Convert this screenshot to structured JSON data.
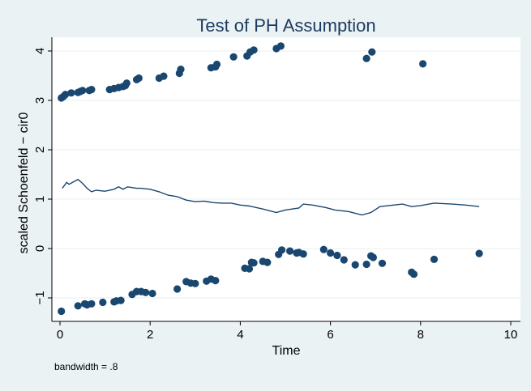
{
  "chart_data": {
    "type": "scatter",
    "title": "Test of PH Assumption",
    "xlabel": "Time",
    "ylabel": "scaled Schoenfeld − cir0",
    "note": "bandwidth = .8",
    "xlim": [
      0,
      10
    ],
    "ylim": [
      -1.4,
      4.3
    ],
    "xticks": [
      0,
      2,
      4,
      6,
      8,
      10
    ],
    "yticks": [
      -1,
      0,
      1,
      2,
      3,
      4
    ],
    "grid": true,
    "colors": {
      "background": "#eaf2f3",
      "plot": "#ffffff",
      "marker": "#1a476f",
      "line": "#1a476f",
      "title": "#1e3a5f",
      "grid": "#eaf2f3"
    },
    "series": [
      {
        "type": "scatter",
        "points": [
          [
            0.03,
            3.05
          ],
          [
            0.08,
            3.08
          ],
          [
            0.12,
            3.12
          ],
          [
            0.25,
            3.15
          ],
          [
            0.4,
            3.16
          ],
          [
            0.45,
            3.18
          ],
          [
            0.5,
            3.2
          ],
          [
            0.65,
            3.2
          ],
          [
            0.7,
            3.22
          ],
          [
            1.1,
            3.22
          ],
          [
            1.2,
            3.24
          ],
          [
            1.3,
            3.26
          ],
          [
            1.4,
            3.28
          ],
          [
            1.45,
            3.3
          ],
          [
            1.48,
            3.35
          ],
          [
            1.7,
            3.42
          ],
          [
            1.75,
            3.45
          ],
          [
            2.2,
            3.45
          ],
          [
            2.3,
            3.49
          ],
          [
            2.65,
            3.55
          ],
          [
            2.68,
            3.63
          ],
          [
            3.35,
            3.66
          ],
          [
            3.45,
            3.68
          ],
          [
            3.48,
            3.73
          ],
          [
            3.85,
            3.88
          ],
          [
            4.15,
            3.9
          ],
          [
            4.22,
            3.98
          ],
          [
            4.3,
            4.02
          ],
          [
            4.8,
            4.05
          ],
          [
            4.9,
            4.1
          ],
          [
            6.8,
            3.85
          ],
          [
            6.92,
            3.98
          ],
          [
            8.05,
            3.74
          ],
          [
            0.03,
            -1.27
          ],
          [
            0.4,
            -1.16
          ],
          [
            0.55,
            -1.12
          ],
          [
            0.6,
            -1.14
          ],
          [
            0.7,
            -1.12
          ],
          [
            0.95,
            -1.09
          ],
          [
            1.2,
            -1.08
          ],
          [
            1.25,
            -1.06
          ],
          [
            1.35,
            -1.05
          ],
          [
            1.6,
            -0.93
          ],
          [
            1.7,
            -0.87
          ],
          [
            1.8,
            -0.87
          ],
          [
            1.9,
            -0.89
          ],
          [
            2.05,
            -0.91
          ],
          [
            2.6,
            -0.82
          ],
          [
            2.8,
            -0.67
          ],
          [
            2.9,
            -0.7
          ],
          [
            3.0,
            -0.71
          ],
          [
            3.25,
            -0.66
          ],
          [
            3.35,
            -0.62
          ],
          [
            3.45,
            -0.65
          ],
          [
            4.1,
            -0.4
          ],
          [
            4.2,
            -0.41
          ],
          [
            4.25,
            -0.28
          ],
          [
            4.3,
            -0.29
          ],
          [
            4.5,
            -0.26
          ],
          [
            4.6,
            -0.28
          ],
          [
            4.85,
            -0.12
          ],
          [
            4.92,
            -0.03
          ],
          [
            5.1,
            -0.05
          ],
          [
            5.25,
            -0.09
          ],
          [
            5.3,
            -0.08
          ],
          [
            5.4,
            -0.11
          ],
          [
            5.85,
            -0.02
          ],
          [
            6.0,
            -0.09
          ],
          [
            6.15,
            -0.14
          ],
          [
            6.3,
            -0.23
          ],
          [
            6.55,
            -0.33
          ],
          [
            6.8,
            -0.32
          ],
          [
            6.9,
            -0.15
          ],
          [
            6.95,
            -0.18
          ],
          [
            7.15,
            -0.3
          ],
          [
            7.8,
            -0.48
          ],
          [
            7.85,
            -0.52
          ],
          [
            8.3,
            -0.22
          ],
          [
            9.3,
            -0.1
          ]
        ]
      },
      {
        "type": "line",
        "points": [
          [
            0.05,
            1.22
          ],
          [
            0.1,
            1.28
          ],
          [
            0.15,
            1.34
          ],
          [
            0.2,
            1.3
          ],
          [
            0.3,
            1.35
          ],
          [
            0.4,
            1.4
          ],
          [
            0.5,
            1.32
          ],
          [
            0.6,
            1.22
          ],
          [
            0.7,
            1.15
          ],
          [
            0.8,
            1.18
          ],
          [
            1.0,
            1.16
          ],
          [
            1.2,
            1.2
          ],
          [
            1.3,
            1.25
          ],
          [
            1.4,
            1.2
          ],
          [
            1.5,
            1.25
          ],
          [
            1.7,
            1.22
          ],
          [
            1.8,
            1.22
          ],
          [
            2.0,
            1.2
          ],
          [
            2.2,
            1.15
          ],
          [
            2.4,
            1.08
          ],
          [
            2.6,
            1.05
          ],
          [
            2.8,
            0.98
          ],
          [
            3.0,
            0.95
          ],
          [
            3.2,
            0.96
          ],
          [
            3.4,
            0.93
          ],
          [
            3.6,
            0.92
          ],
          [
            3.8,
            0.92
          ],
          [
            4.0,
            0.88
          ],
          [
            4.2,
            0.86
          ],
          [
            4.5,
            0.8
          ],
          [
            4.8,
            0.73
          ],
          [
            5.0,
            0.78
          ],
          [
            5.3,
            0.82
          ],
          [
            5.4,
            0.9
          ],
          [
            5.6,
            0.88
          ],
          [
            5.9,
            0.83
          ],
          [
            6.1,
            0.78
          ],
          [
            6.4,
            0.75
          ],
          [
            6.7,
            0.68
          ],
          [
            6.9,
            0.73
          ],
          [
            7.1,
            0.85
          ],
          [
            7.4,
            0.88
          ],
          [
            7.6,
            0.9
          ],
          [
            7.8,
            0.85
          ],
          [
            8.0,
            0.87
          ],
          [
            8.3,
            0.92
          ],
          [
            8.7,
            0.9
          ],
          [
            9.0,
            0.88
          ],
          [
            9.3,
            0.85
          ]
        ]
      }
    ]
  }
}
